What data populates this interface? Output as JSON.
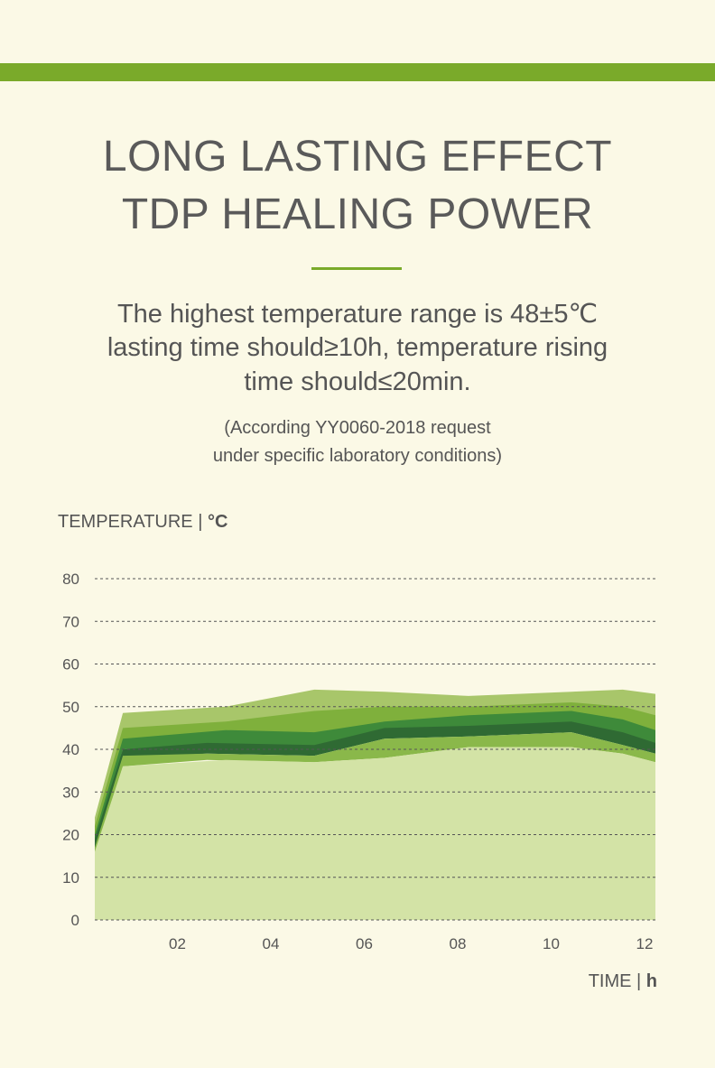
{
  "colors": {
    "accent": "#7aaa2a",
    "background": "#fbf9e6",
    "text": "#555555"
  },
  "header": {
    "title_line1": "LONG LASTING EFFECT",
    "title_line2": "TDP HEALING POWER"
  },
  "description": {
    "line1": "The highest temperature range is 48±5℃",
    "line2": "lasting time should≥10h, temperature rising",
    "line3": "time should≤20min."
  },
  "note": {
    "line1": "(According YY0060-2018 request",
    "line2": "under specific laboratory conditions)"
  },
  "axis": {
    "y_label": "TEMPERATURE",
    "y_sep": " | ",
    "y_unit": "°C",
    "x_label": "TIME",
    "x_sep": " | ",
    "x_unit": "h"
  },
  "chart_data": {
    "type": "area",
    "ylim": [
      0,
      80
    ],
    "xlim": [
      0,
      12
    ],
    "y_ticks": [
      0,
      10,
      20,
      30,
      40,
      50,
      60,
      70,
      80
    ],
    "y_tick_labels": [
      "0",
      "10",
      "20",
      "30",
      "40",
      "50",
      "60",
      "70",
      "80"
    ],
    "x_ticks": [
      2,
      4,
      6,
      8,
      10,
      12
    ],
    "x_tick_labels": [
      "02",
      "04",
      "06",
      "08",
      "10",
      "12"
    ],
    "grid": true,
    "grid_style": "dashed-horizontal",
    "series": [
      {
        "color": "#a8c66a",
        "x": [
          0,
          0.6,
          2.8,
          4.7,
          6.2,
          8.0,
          10.2,
          11.3,
          12
        ],
        "upper": [
          24,
          48.5,
          50,
          54,
          53.5,
          52.5,
          53.5,
          54,
          53
        ],
        "lower": [
          18,
          44,
          45,
          46,
          47,
          48.5,
          48,
          46,
          45
        ]
      },
      {
        "color": "#7fb03c",
        "x": [
          0,
          0.6,
          2.8,
          4.7,
          6.2,
          8.0,
          10.2,
          11.3,
          12
        ],
        "upper": [
          22,
          45,
          46.5,
          49,
          50,
          50,
          51,
          50,
          48
        ],
        "lower": [
          18,
          41,
          42,
          42,
          44,
          45,
          46,
          42,
          40
        ]
      },
      {
        "color": "#3e8a3a",
        "x": [
          0,
          0.6,
          2.8,
          4.7,
          6.2,
          8.0,
          10.2,
          11.3,
          12
        ],
        "upper": [
          20,
          42.5,
          44.5,
          44,
          46.5,
          48,
          49,
          47,
          44.5
        ],
        "lower": [
          16,
          40,
          41,
          39.5,
          43,
          44,
          45,
          42,
          39.5
        ]
      },
      {
        "color": "#2f6a33",
        "x": [
          0,
          0.6,
          2.4,
          4.7,
          6.2,
          8.0,
          10.2,
          11.3,
          12
        ],
        "upper": [
          19,
          40,
          41.5,
          41,
          45,
          45.5,
          46.5,
          44,
          41.5
        ],
        "lower": [
          15,
          38,
          39,
          38.5,
          42.5,
          43,
          44,
          41,
          39
        ]
      },
      {
        "color": "#8ab84a",
        "x": [
          0,
          0.6,
          2.4,
          4.7,
          6.2,
          8.0,
          10.2,
          11.3,
          12
        ],
        "upper": [
          17,
          38.5,
          39,
          38.5,
          42.5,
          43,
          44,
          41,
          39
        ],
        "lower": [
          15,
          36,
          37.5,
          37,
          38,
          40.5,
          40.5,
          39,
          37
        ]
      },
      {
        "color": "#d3e3a6",
        "x": [
          0,
          0.6,
          2.8,
          4.7,
          6.2,
          8.0,
          10.2,
          11.3,
          12
        ],
        "upper": [
          16,
          36,
          37.5,
          37,
          38,
          40.5,
          40.5,
          39,
          37
        ],
        "lower": [
          0,
          0,
          0,
          0,
          0,
          0,
          0,
          0,
          0
        ]
      }
    ]
  }
}
